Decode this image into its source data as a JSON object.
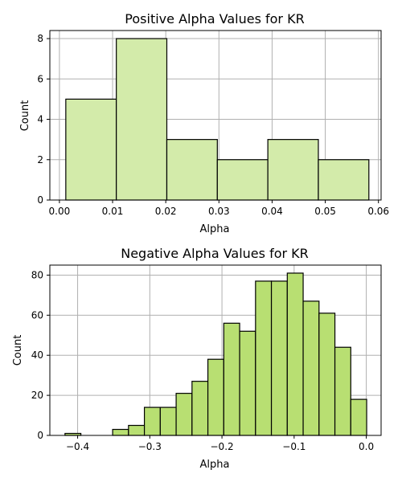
{
  "chart_data": [
    {
      "type": "bar",
      "title": "Positive Alpha Values for KR",
      "xlabel": "Alpha",
      "ylabel": "Count",
      "bar_color": "#d3ebaa",
      "edge_color": "#000000",
      "grid": true,
      "xlim": [
        -0.0018,
        0.0605
      ],
      "ylim": [
        0,
        8.4
      ],
      "xticks": [
        0.0,
        0.01,
        0.02,
        0.03,
        0.04,
        0.05,
        0.06
      ],
      "xtick_labels": [
        "0.00",
        "0.01",
        "0.02",
        "0.03",
        "0.04",
        "0.05",
        "0.06"
      ],
      "yticks": [
        0,
        2,
        4,
        6,
        8
      ],
      "ytick_labels": [
        "0",
        "2",
        "4",
        "6",
        "8"
      ],
      "bin_edges": [
        0.0012,
        0.0107,
        0.0202,
        0.0297,
        0.0392,
        0.0487,
        0.0582
      ],
      "values": [
        5,
        8,
        3,
        2,
        3,
        2
      ]
    },
    {
      "type": "bar",
      "title": "Negative Alpha Values for KR",
      "xlabel": "Alpha",
      "ylabel": "Count",
      "bar_color": "#b8df72",
      "edge_color": "#000000",
      "grid": true,
      "xlim": [
        -0.4385,
        0.0205
      ],
      "ylim": [
        0,
        85
      ],
      "xticks": [
        -0.4,
        -0.3,
        -0.2,
        -0.1,
        0.0
      ],
      "xtick_labels": [
        "−0.4",
        "−0.3",
        "−0.2",
        "−0.1",
        "0.0"
      ],
      "yticks": [
        0,
        20,
        40,
        60,
        80
      ],
      "ytick_labels": [
        "0",
        "20",
        "40",
        "60",
        "80"
      ],
      "bin_edges": [
        -0.4175,
        -0.3955,
        -0.3735,
        -0.3515,
        -0.3295,
        -0.3075,
        -0.2855,
        -0.2635,
        -0.2415,
        -0.2195,
        -0.1975,
        -0.1755,
        -0.1535,
        -0.1315,
        -0.1095,
        -0.0875,
        -0.0655,
        -0.0435,
        -0.0215,
        0.0005
      ],
      "values": [
        1,
        0,
        0,
        3,
        5,
        14,
        14,
        21,
        27,
        38,
        56,
        52,
        77,
        77,
        81,
        67,
        61,
        44,
        18
      ]
    }
  ]
}
